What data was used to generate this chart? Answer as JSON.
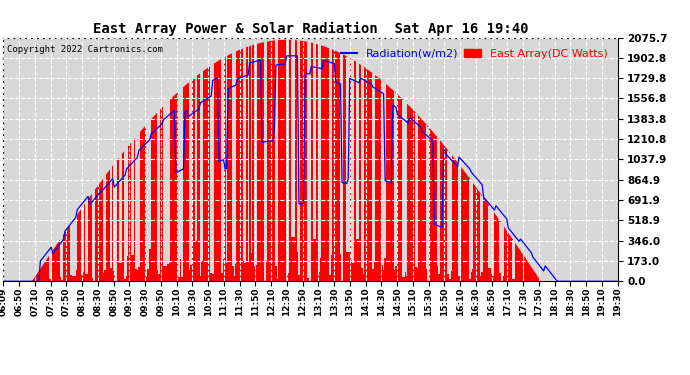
{
  "title": "East Array Power & Solar Radiation  Sat Apr 16 19:40",
  "copyright": "Copyright 2022 Cartronics.com",
  "legend_radiation": "Radiation(w/m2)",
  "legend_array": "East Array(DC Watts)",
  "yticks": [
    0.0,
    173.0,
    346.0,
    518.9,
    691.9,
    864.9,
    1037.9,
    1210.8,
    1383.8,
    1556.8,
    1729.8,
    1902.8,
    2075.7
  ],
  "ymax": 2075.7,
  "ymin": 0.0,
  "background_color": "#ffffff",
  "plot_bg_color": "#d8d8d8",
  "grid_color": "#ffffff",
  "radiation_color": "#0000ff",
  "array_color": "#ff0000",
  "time_labels": [
    "06:09",
    "06:50",
    "07:10",
    "07:30",
    "07:50",
    "08:10",
    "08:30",
    "08:50",
    "09:10",
    "09:30",
    "09:50",
    "10:10",
    "10:30",
    "10:50",
    "11:10",
    "11:30",
    "11:50",
    "12:10",
    "12:30",
    "12:50",
    "13:10",
    "13:30",
    "13:50",
    "14:10",
    "14:30",
    "14:50",
    "15:10",
    "15:30",
    "15:50",
    "16:10",
    "16:30",
    "16:50",
    "17:10",
    "17:30",
    "17:50",
    "18:10",
    "18:30",
    "18:50",
    "19:10",
    "19:30"
  ],
  "n_points": 400,
  "rad_seed": 7,
  "arr_seed": 13
}
